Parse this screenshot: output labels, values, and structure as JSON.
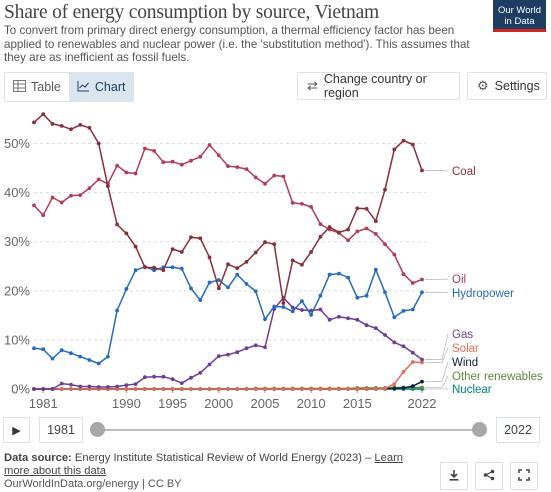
{
  "header": {
    "title": "Share of energy consumption by source, Vietnam",
    "subtitle": "To convert from primary direct energy consumption, a thermal efficiency factor has been applied to renewables and nuclear power (i.e. the 'substitution method'). This assumes that they are as inefficient as fossil fuels.",
    "logo_line1": "Our World",
    "logo_line2": "in Data"
  },
  "tabs": [
    {
      "label": "Table",
      "icon": "table-icon",
      "active": false
    },
    {
      "label": "Chart",
      "icon": "line-chart-icon",
      "active": true
    }
  ],
  "buttons": {
    "change_country": "Change country or region",
    "change_country_icon": "swap-icon",
    "settings": "Settings",
    "settings_icon": "gear-icon"
  },
  "timeline": {
    "start": "1981",
    "end": "2022",
    "play_icon": "play-icon"
  },
  "footer": {
    "source_label": "Data source:",
    "source_text": "Energy Institute Statistical Review of World Energy (2023) –",
    "learn_more": "Learn more about this data",
    "license": "OurWorldInData.org/energy | CC BY",
    "download_icon": "download-icon",
    "share_icon": "share-icon",
    "expand_icon": "expand-icon"
  },
  "chart_data": {
    "type": "line",
    "title": "Share of energy consumption by source, Vietnam",
    "xlim": [
      1980,
      2022
    ],
    "ylim": [
      0,
      55
    ],
    "xticks": [
      1981,
      1990,
      1995,
      2000,
      2005,
      2010,
      2015,
      2022
    ],
    "yticks": [
      0,
      10,
      20,
      30,
      40,
      50
    ],
    "ytick_labels": [
      "0%",
      "10%",
      "20%",
      "30%",
      "40%",
      "50%"
    ],
    "grid": "horizontal dashed",
    "legend": "inline-right",
    "x": [
      1980,
      1981,
      1982,
      1983,
      1984,
      1985,
      1986,
      1987,
      1988,
      1989,
      1990,
      1991,
      1992,
      1993,
      1994,
      1995,
      1996,
      1997,
      1998,
      1999,
      2000,
      2001,
      2002,
      2003,
      2004,
      2005,
      2006,
      2007,
      2008,
      2009,
      2010,
      2011,
      2012,
      2013,
      2014,
      2015,
      2016,
      2017,
      2018,
      2019,
      2020,
      2021,
      2022
    ],
    "series": [
      {
        "name": "Coal",
        "color": "#883039",
        "values": [
          54.3,
          56.0,
          54.0,
          53.6,
          52.9,
          53.8,
          53.2,
          50.0,
          41.3,
          33.5,
          31.7,
          29.0,
          24.8,
          24.7,
          24.2,
          28.5,
          27.9,
          30.9,
          30.7,
          26.8,
          20.5,
          25.4,
          24.6,
          25.9,
          27.8,
          29.9,
          29.5,
          17.5,
          26.2,
          25.3,
          27.9,
          31.0,
          33.0,
          31.9,
          32.5,
          36.8,
          36.7,
          34.2,
          40.6,
          48.8,
          50.6,
          49.8,
          44.5
        ]
      },
      {
        "name": "Oil",
        "color": "#b13d59",
        "values": [
          37.4,
          35.4,
          39.0,
          38.0,
          39.4,
          39.5,
          40.9,
          42.7,
          41.8,
          45.5,
          44.1,
          43.9,
          49.0,
          48.5,
          46.2,
          46.3,
          45.7,
          46.5,
          47.3,
          49.7,
          47.6,
          45.4,
          45.2,
          44.8,
          43.1,
          41.8,
          43.5,
          43.3,
          37.9,
          37.7,
          37.1,
          33.6,
          32.5,
          31.8,
          30.3,
          32.1,
          32.7,
          31.6,
          29.5,
          27.4,
          23.4,
          21.6,
          22.3
        ]
      },
      {
        "name": "Hydropower",
        "color": "#286bbb",
        "values": [
          8.3,
          8.1,
          6.2,
          7.9,
          7.3,
          6.6,
          5.9,
          5.2,
          6.6,
          16.0,
          20.4,
          24.2,
          24.9,
          24.2,
          24.8,
          24.8,
          24.5,
          20.5,
          18.1,
          21.7,
          22.2,
          20.7,
          23.3,
          21.4,
          19.9,
          14.2,
          16.8,
          16.7,
          15.8,
          17.9,
          15.1,
          19.0,
          23.3,
          23.5,
          22.7,
          18.6,
          19.0,
          24.3,
          19.7,
          14.6,
          15.9,
          16.2,
          19.7
        ]
      },
      {
        "name": "Gas",
        "color": "#6d3e91",
        "values": [
          0,
          0,
          0,
          1.1,
          0.9,
          0.5,
          0.5,
          0.4,
          0.4,
          0.5,
          0.8,
          1.0,
          2.4,
          2.5,
          2.5,
          2.0,
          1.2,
          2.3,
          3.3,
          5.0,
          6.7,
          7.0,
          7.5,
          8.3,
          8.9,
          8.5,
          16.3,
          18.6,
          16.6,
          16.1,
          16.0,
          16.2,
          14.1,
          14.7,
          14.4,
          14.1,
          13.0,
          12.4,
          11.0,
          9.5,
          8.7,
          7.4,
          6.0
        ]
      },
      {
        "name": "Solar",
        "color": "#e56e5a",
        "values": [
          0,
          0,
          0,
          0,
          0,
          0,
          0,
          0,
          0,
          0,
          0,
          0,
          0,
          0,
          0,
          0,
          0,
          0,
          0,
          0,
          0,
          0,
          0,
          0,
          0,
          0,
          0,
          0,
          0,
          0,
          0,
          0,
          0,
          0,
          0,
          0,
          0,
          0,
          0.1,
          1.0,
          3.5,
          5.5,
          5.4
        ]
      },
      {
        "name": "Wind",
        "color": "#0b1f3f",
        "values": [
          0,
          0,
          0,
          0,
          0,
          0,
          0,
          0,
          0,
          0,
          0,
          0,
          0,
          0,
          0,
          0,
          0,
          0,
          0,
          0,
          0,
          0,
          0,
          0,
          0,
          0,
          0,
          0,
          0,
          0,
          0,
          0,
          0,
          0,
          0,
          0,
          0,
          0,
          0.1,
          0.1,
          0.2,
          0.6,
          1.5
        ]
      },
      {
        "name": "Other renewables",
        "color": "#5c8a3c",
        "values": [
          0,
          0,
          0,
          0,
          0,
          0,
          0,
          0,
          0,
          0,
          0,
          0,
          0,
          0,
          0,
          0,
          0,
          0,
          0,
          0,
          0,
          0,
          0,
          0,
          0.1,
          0.1,
          0.1,
          0.1,
          0.1,
          0.1,
          0.1,
          0.1,
          0.1,
          0.1,
          0.1,
          0.2,
          0.2,
          0.2,
          0.2,
          0.3,
          0.3,
          0.3,
          0.3
        ]
      },
      {
        "name": "Nuclear",
        "color": "#00847e",
        "values": [
          0,
          0,
          0,
          0,
          0,
          0,
          0,
          0,
          0,
          0,
          0,
          0,
          0,
          0,
          0,
          0,
          0,
          0,
          0,
          0,
          0,
          0,
          0,
          0,
          0,
          0,
          0,
          0,
          0,
          0,
          0,
          0,
          0,
          0,
          0,
          0,
          0,
          0,
          0,
          0,
          0,
          0,
          0
        ]
      }
    ]
  }
}
